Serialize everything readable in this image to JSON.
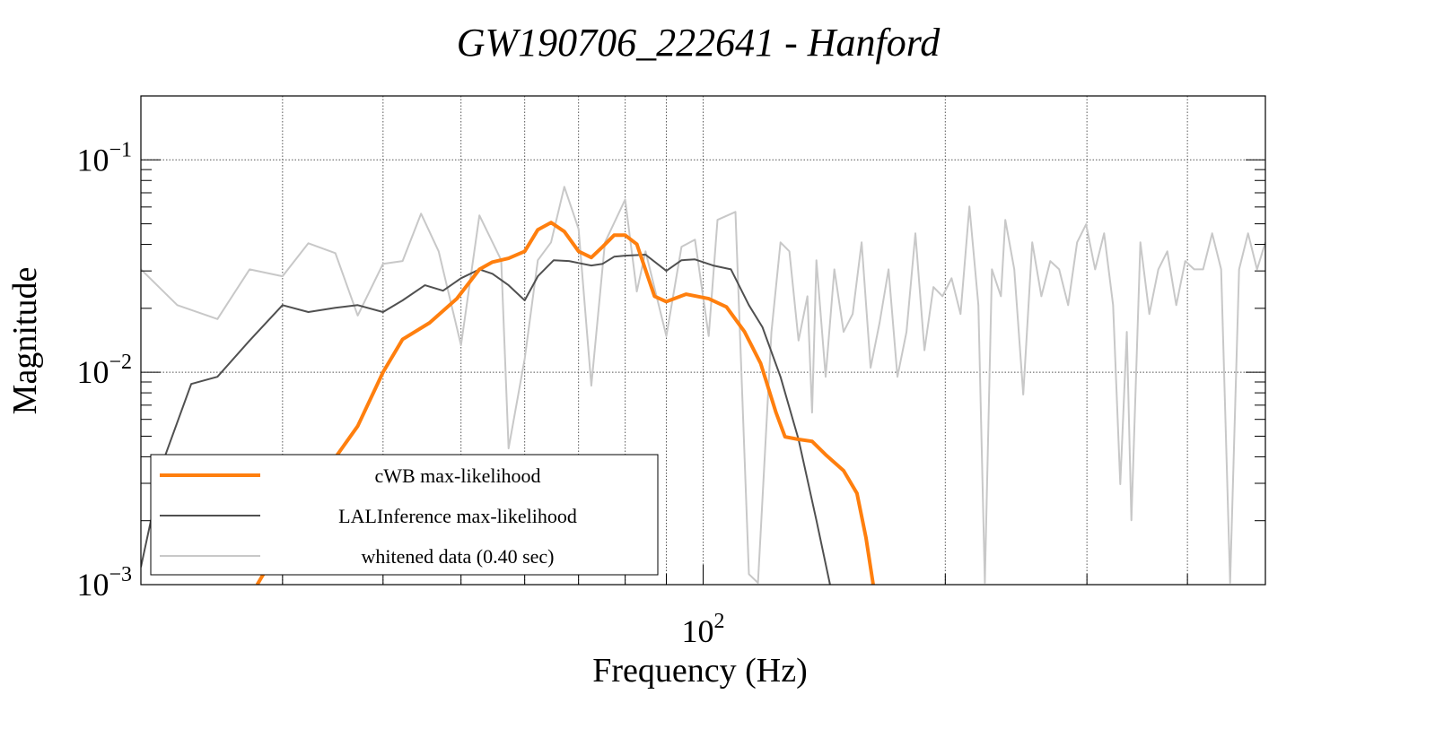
{
  "chart_data": {
    "type": "line",
    "title": "GW190706_222641 - Hanford",
    "xlabel": "Frequency (Hz)",
    "ylabel": "Magnitude",
    "xscale": "log",
    "yscale": "log",
    "xlim": [
      20,
      500
    ],
    "ylim": [
      0.001,
      0.2
    ],
    "grid": true,
    "x_gridlines": [
      30,
      40,
      50,
      60,
      70,
      80,
      90,
      100,
      200,
      300,
      400
    ],
    "y_gridlines": [
      0.1,
      0.01
    ],
    "x_ticks": [
      {
        "value": 100,
        "base": "10",
        "exp": "2"
      }
    ],
    "y_ticks": [
      {
        "value": 0.1,
        "base": "10",
        "exp": "−1"
      },
      {
        "value": 0.01,
        "base": "10",
        "exp": "−2"
      },
      {
        "value": 0.001,
        "base": "10",
        "exp": "−3"
      }
    ],
    "legend_position": "bottom-left",
    "series": [
      {
        "name": "whitened data (0.40 sec)",
        "color": "#c8c8c8",
        "width": 2,
        "x": [
          20,
          22.2,
          24.9,
          27.3,
          30,
          32.3,
          34.9,
          37.2,
          40,
          42.3,
          44.6,
          46.9,
          50,
          52.7,
          56.1,
          57.3,
          60,
          62.3,
          64.7,
          67.2,
          70,
          72.6,
          75.5,
          80,
          82.7,
          84.8,
          90,
          94,
          97.7,
          101.6,
          104.2,
          109.7,
          114,
          117,
          121.6,
          124.8,
          128,
          131.4,
          134.8,
          136.6,
          138.3,
          142,
          145.6,
          149.5,
          153.4,
          157.4,
          161.5,
          165.7,
          170,
          174.4,
          179,
          183.6,
          188.4,
          193.3,
          198.4,
          203.6,
          208.9,
          214.3,
          219.9,
          224,
          228.6,
          234.5,
          237.5,
          243.7,
          250,
          256.5,
          263.3,
          270.1,
          277.1,
          284.3,
          291.7,
          299.3,
          307.1,
          315.1,
          323.3,
          330,
          336.3,
          340.7,
          349.6,
          358.7,
          368,
          377.6,
          387.4,
          397.5,
          407.8,
          418.4,
          429.3,
          440.5,
          452,
          463.7,
          475.8,
          488.2,
          500
        ],
        "y": [
          0.0305,
          0.0207,
          0.0178,
          0.0305,
          0.0283,
          0.0405,
          0.0364,
          0.0185,
          0.0324,
          0.0334,
          0.0558,
          0.0371,
          0.0134,
          0.0548,
          0.0337,
          0.00438,
          0.0116,
          0.0337,
          0.0409,
          0.0747,
          0.0473,
          0.00865,
          0.0409,
          0.065,
          0.024,
          0.0371,
          0.0148,
          0.039,
          0.0421,
          0.0148,
          0.0522,
          0.0569,
          0.00112,
          0.00102,
          0.0155,
          0.0409,
          0.0371,
          0.0141,
          0.0228,
          0.00646,
          0.0337,
          0.00952,
          0.0305,
          0.0155,
          0.0188,
          0.0409,
          0.0105,
          0.0171,
          0.0305,
          0.00952,
          0.0155,
          0.0451,
          0.0127,
          0.0252,
          0.0228,
          0.0277,
          0.0188,
          0.0603,
          0.0207,
          0.00102,
          0.0305,
          0.0228,
          0.0522,
          0.0305,
          0.00785,
          0.0409,
          0.0228,
          0.0334,
          0.0305,
          0.0207,
          0.0409,
          0.0497,
          0.0305,
          0.0451,
          0.0207,
          0.00297,
          0.0155,
          0.00201,
          0.0409,
          0.0188,
          0.0305,
          0.0371,
          0.0207,
          0.0334,
          0.0305,
          0.0305,
          0.0451,
          0.0305,
          0.00102,
          0.0305,
          0.0451,
          0.0305,
          0.0409
        ]
      },
      {
        "name": "LALInference max-likelihood",
        "color": "#505050",
        "width": 2,
        "x": [
          20,
          21.4,
          23.1,
          24.9,
          27.3,
          30,
          32.3,
          34.9,
          37.2,
          40,
          42.3,
          45.1,
          47.5,
          50,
          52.7,
          54.7,
          57.3,
          60,
          62.3,
          65.2,
          68.1,
          70,
          72.6,
          75,
          77.5,
          80,
          84.8,
          90,
          94,
          97.7,
          102.9,
          108.3,
          114,
          118.5,
          124.8,
          131.4,
          138.3,
          143.8
        ],
        "y": [
          0.00121,
          0.00397,
          0.00881,
          0.00952,
          0.0141,
          0.0207,
          0.0192,
          0.0201,
          0.0207,
          0.0192,
          0.0218,
          0.0257,
          0.0242,
          0.0277,
          0.0305,
          0.0291,
          0.0257,
          0.0218,
          0.0283,
          0.0337,
          0.0334,
          0.0327,
          0.0318,
          0.0324,
          0.035,
          0.0354,
          0.0358,
          0.03,
          0.0337,
          0.034,
          0.0318,
          0.0305,
          0.0207,
          0.0163,
          0.00952,
          0.00483,
          0.00201,
          0.001
        ]
      },
      {
        "name": "cWB max-likelihood",
        "color": "#ff7f0e",
        "width": 4,
        "x": [
          27.9,
          31.1,
          34.9,
          37.2,
          40,
          42.3,
          45.7,
          49.4,
          52.7,
          54.7,
          57.3,
          60,
          62.3,
          64.7,
          67.2,
          70,
          72.6,
          75,
          77.5,
          80,
          82.7,
          87,
          90,
          95.2,
          101.6,
          106.9,
          112.6,
          117.9,
          123.2,
          126.4,
          131.4,
          136.6,
          142,
          149.5,
          155.3,
          159.4,
          162.7
        ],
        "y": [
          0.001,
          0.00201,
          0.00397,
          0.00558,
          0.01,
          0.0143,
          0.0171,
          0.0222,
          0.0305,
          0.033,
          0.0344,
          0.0371,
          0.0469,
          0.0507,
          0.046,
          0.0371,
          0.0347,
          0.039,
          0.0442,
          0.0442,
          0.0401,
          0.0228,
          0.0215,
          0.0233,
          0.0222,
          0.0203,
          0.0155,
          0.011,
          0.00646,
          0.00497,
          0.00483,
          0.00473,
          0.00409,
          0.00344,
          0.00269,
          0.00166,
          0.001
        ]
      }
    ]
  }
}
